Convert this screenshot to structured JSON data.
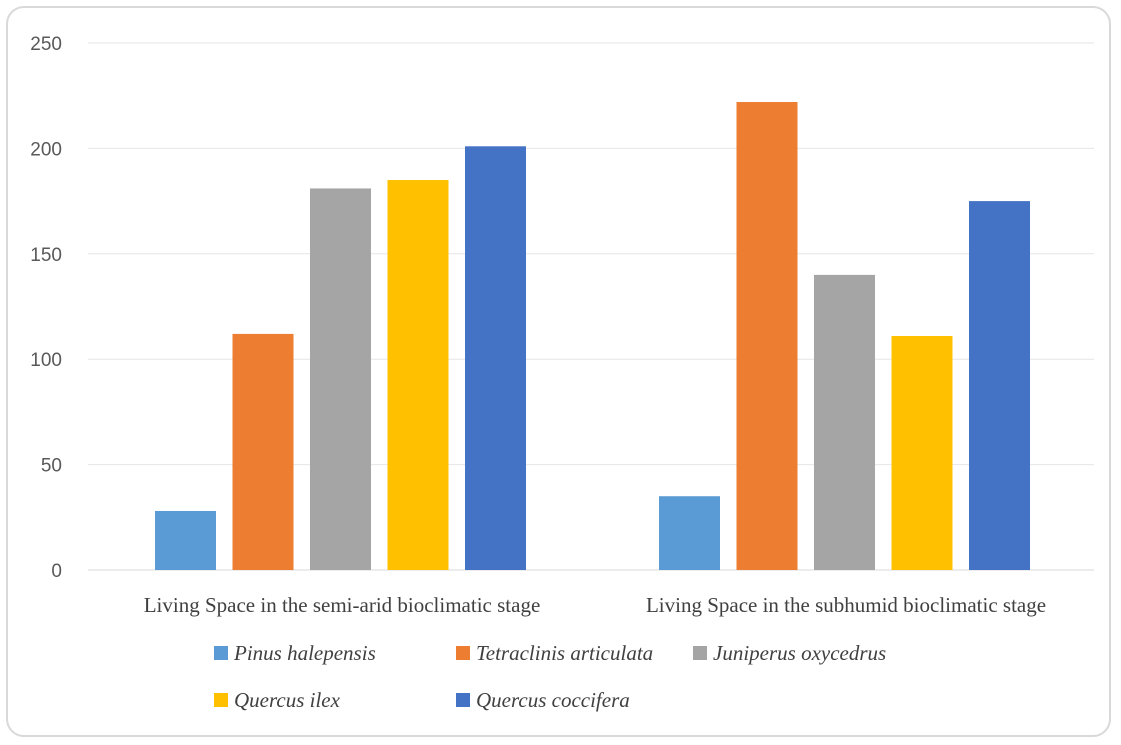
{
  "chart_data": {
    "type": "bar",
    "categories": [
      "Living Space in the semi-arid bioclimatic stage",
      "Living Space in the subhumid bioclimatic stage"
    ],
    "series": [
      {
        "name": "Pinus halepensis",
        "color": "#5b9bd5",
        "values": [
          28,
          35
        ]
      },
      {
        "name": "Tetraclinis articulata",
        "color": "#ed7d31",
        "values": [
          112,
          222
        ]
      },
      {
        "name": "Juniperus oxycedrus",
        "color": "#a5a5a5",
        "values": [
          181,
          140
        ]
      },
      {
        "name": "Quercus ilex",
        "color": "#ffc000",
        "values": [
          185,
          111
        ]
      },
      {
        "name": "Quercus coccifera",
        "color": "#4472c4",
        "values": [
          201,
          175
        ]
      }
    ],
    "yticks": [
      "0",
      "50",
      "100",
      "150",
      "200",
      "250"
    ],
    "ylim": [
      0,
      250
    ],
    "grid": true,
    "legend_position": "bottom"
  }
}
